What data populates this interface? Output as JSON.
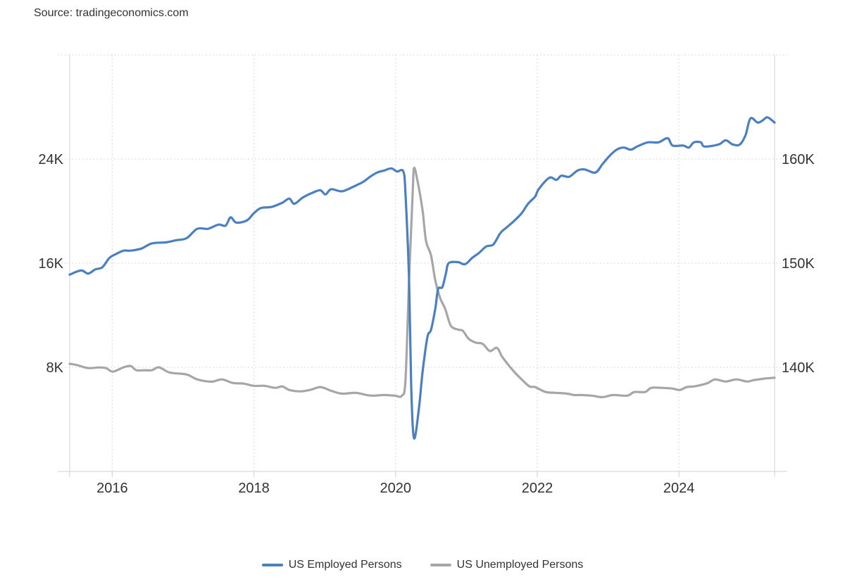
{
  "source": "Source: tradingeconomics.com",
  "chart_data": {
    "type": "line",
    "title": "",
    "xlabel": "",
    "x_range": [
      2015.4,
      2025.35
    ],
    "x_ticks": [
      2016,
      2018,
      2020,
      2022,
      2024
    ],
    "x_tick_labels": [
      "2016",
      "2018",
      "2020",
      "2022",
      "2024"
    ],
    "left_axis": {
      "unit": "thousands",
      "range": [
        0,
        32
      ],
      "ticks": [
        8,
        16,
        24
      ],
      "tick_labels": [
        "8K",
        "16K",
        "24K"
      ]
    },
    "right_axis": {
      "unit": "thousands",
      "range": [
        130,
        170
      ],
      "ticks": [
        140,
        150,
        160
      ],
      "tick_labels": [
        "140K",
        "150K",
        "160K"
      ]
    },
    "grid": true,
    "legend_position": "bottom-center",
    "series": [
      {
        "name": "US Employed Persons",
        "axis": "right",
        "color": "#4a7fc1",
        "points": [
          [
            2015.4,
            148.9
          ],
          [
            2015.56,
            149.3
          ],
          [
            2015.66,
            149.0
          ],
          [
            2015.76,
            149.4
          ],
          [
            2015.86,
            149.6
          ],
          [
            2015.96,
            150.5
          ],
          [
            2016.06,
            150.9
          ],
          [
            2016.16,
            151.2
          ],
          [
            2016.26,
            151.2
          ],
          [
            2016.41,
            151.4
          ],
          [
            2016.56,
            151.9
          ],
          [
            2016.76,
            152.0
          ],
          [
            2016.9,
            152.2
          ],
          [
            2017.05,
            152.4
          ],
          [
            2017.2,
            153.3
          ],
          [
            2017.35,
            153.3
          ],
          [
            2017.5,
            153.7
          ],
          [
            2017.6,
            153.6
          ],
          [
            2017.67,
            154.4
          ],
          [
            2017.75,
            153.9
          ],
          [
            2017.9,
            154.1
          ],
          [
            2018.0,
            154.8
          ],
          [
            2018.1,
            155.3
          ],
          [
            2018.25,
            155.4
          ],
          [
            2018.4,
            155.8
          ],
          [
            2018.5,
            156.2
          ],
          [
            2018.57,
            155.7
          ],
          [
            2018.69,
            156.3
          ],
          [
            2018.84,
            156.8
          ],
          [
            2018.94,
            157.0
          ],
          [
            2019.01,
            156.6
          ],
          [
            2019.09,
            157.1
          ],
          [
            2019.24,
            156.9
          ],
          [
            2019.39,
            157.3
          ],
          [
            2019.54,
            157.8
          ],
          [
            2019.64,
            158.3
          ],
          [
            2019.74,
            158.7
          ],
          [
            2019.84,
            158.9
          ],
          [
            2019.94,
            159.1
          ],
          [
            2020.02,
            158.8
          ],
          [
            2020.11,
            158.8
          ],
          [
            2020.14,
            156.6
          ],
          [
            2020.19,
            148.5
          ],
          [
            2020.22,
            138.3
          ],
          [
            2020.26,
            133.2
          ],
          [
            2020.33,
            136.1
          ],
          [
            2020.38,
            139.5
          ],
          [
            2020.45,
            142.9
          ],
          [
            2020.5,
            143.6
          ],
          [
            2020.56,
            145.6
          ],
          [
            2020.6,
            147.5
          ],
          [
            2020.66,
            147.7
          ],
          [
            2020.71,
            149.0
          ],
          [
            2020.75,
            150.0
          ],
          [
            2020.88,
            150.1
          ],
          [
            2020.98,
            149.9
          ],
          [
            2021.08,
            150.5
          ],
          [
            2021.18,
            151.0
          ],
          [
            2021.28,
            151.6
          ],
          [
            2021.38,
            151.8
          ],
          [
            2021.48,
            152.9
          ],
          [
            2021.58,
            153.5
          ],
          [
            2021.68,
            154.1
          ],
          [
            2021.78,
            154.8
          ],
          [
            2021.87,
            155.7
          ],
          [
            2021.97,
            156.4
          ],
          [
            2022.02,
            157.1
          ],
          [
            2022.17,
            158.2
          ],
          [
            2022.27,
            158.0
          ],
          [
            2022.34,
            158.4
          ],
          [
            2022.45,
            158.3
          ],
          [
            2022.57,
            158.9
          ],
          [
            2022.67,
            159.0
          ],
          [
            2022.82,
            158.7
          ],
          [
            2022.92,
            159.5
          ],
          [
            2023.02,
            160.3
          ],
          [
            2023.12,
            160.9
          ],
          [
            2023.22,
            161.1
          ],
          [
            2023.32,
            160.9
          ],
          [
            2023.41,
            161.2
          ],
          [
            2023.56,
            161.6
          ],
          [
            2023.71,
            161.6
          ],
          [
            2023.84,
            162.0
          ],
          [
            2023.91,
            161.3
          ],
          [
            2024.06,
            161.3
          ],
          [
            2024.14,
            161.1
          ],
          [
            2024.21,
            161.6
          ],
          [
            2024.31,
            161.6
          ],
          [
            2024.36,
            161.2
          ],
          [
            2024.56,
            161.4
          ],
          [
            2024.66,
            161.8
          ],
          [
            2024.76,
            161.4
          ],
          [
            2024.86,
            161.4
          ],
          [
            2024.94,
            162.3
          ],
          [
            2025.01,
            163.9
          ],
          [
            2025.11,
            163.5
          ],
          [
            2025.18,
            163.7
          ],
          [
            2025.25,
            164.0
          ],
          [
            2025.35,
            163.5
          ]
        ]
      },
      {
        "name": "US Unemployed Persons",
        "axis": "left",
        "color": "#a6a6a6",
        "points": [
          [
            2015.4,
            8.27
          ],
          [
            2015.51,
            8.16
          ],
          [
            2015.66,
            7.94
          ],
          [
            2015.81,
            7.99
          ],
          [
            2015.91,
            7.94
          ],
          [
            2016.01,
            7.67
          ],
          [
            2016.16,
            8.0
          ],
          [
            2016.26,
            8.1
          ],
          [
            2016.34,
            7.78
          ],
          [
            2016.46,
            7.78
          ],
          [
            2016.56,
            7.78
          ],
          [
            2016.66,
            8.0
          ],
          [
            2016.81,
            7.6
          ],
          [
            2017.05,
            7.45
          ],
          [
            2017.2,
            7.07
          ],
          [
            2017.4,
            6.9
          ],
          [
            2017.55,
            7.07
          ],
          [
            2017.7,
            6.8
          ],
          [
            2017.85,
            6.75
          ],
          [
            2018.0,
            6.58
          ],
          [
            2018.15,
            6.58
          ],
          [
            2018.3,
            6.42
          ],
          [
            2018.4,
            6.53
          ],
          [
            2018.5,
            6.26
          ],
          [
            2018.65,
            6.15
          ],
          [
            2018.79,
            6.26
          ],
          [
            2018.94,
            6.48
          ],
          [
            2019.09,
            6.2
          ],
          [
            2019.24,
            5.98
          ],
          [
            2019.44,
            6.04
          ],
          [
            2019.59,
            5.87
          ],
          [
            2019.69,
            5.82
          ],
          [
            2019.84,
            5.87
          ],
          [
            2019.99,
            5.82
          ],
          [
            2020.09,
            5.82
          ],
          [
            2020.14,
            7.07
          ],
          [
            2020.19,
            14.7
          ],
          [
            2020.24,
            21.2
          ],
          [
            2020.26,
            23.3
          ],
          [
            2020.31,
            22.3
          ],
          [
            2020.38,
            20.1
          ],
          [
            2020.43,
            17.7
          ],
          [
            2020.5,
            16.6
          ],
          [
            2020.56,
            14.7
          ],
          [
            2020.63,
            13.3
          ],
          [
            2020.7,
            12.5
          ],
          [
            2020.78,
            11.2
          ],
          [
            2020.88,
            10.9
          ],
          [
            2020.95,
            10.8
          ],
          [
            2021.03,
            10.2
          ],
          [
            2021.13,
            9.9
          ],
          [
            2021.23,
            9.8
          ],
          [
            2021.33,
            9.25
          ],
          [
            2021.43,
            9.5
          ],
          [
            2021.5,
            8.85
          ],
          [
            2021.58,
            8.27
          ],
          [
            2021.68,
            7.62
          ],
          [
            2021.78,
            7.07
          ],
          [
            2021.89,
            6.53
          ],
          [
            2021.97,
            6.48
          ],
          [
            2022.12,
            6.1
          ],
          [
            2022.27,
            6.04
          ],
          [
            2022.42,
            5.98
          ],
          [
            2022.52,
            5.87
          ],
          [
            2022.62,
            5.87
          ],
          [
            2022.77,
            5.82
          ],
          [
            2022.92,
            5.71
          ],
          [
            2023.07,
            5.87
          ],
          [
            2023.27,
            5.82
          ],
          [
            2023.37,
            6.1
          ],
          [
            2023.52,
            6.1
          ],
          [
            2023.61,
            6.42
          ],
          [
            2023.76,
            6.42
          ],
          [
            2023.91,
            6.37
          ],
          [
            2024.01,
            6.26
          ],
          [
            2024.11,
            6.48
          ],
          [
            2024.21,
            6.53
          ],
          [
            2024.31,
            6.64
          ],
          [
            2024.41,
            6.8
          ],
          [
            2024.51,
            7.07
          ],
          [
            2024.66,
            6.91
          ],
          [
            2024.81,
            7.07
          ],
          [
            2024.96,
            6.91
          ],
          [
            2025.06,
            7.02
          ],
          [
            2025.2,
            7.13
          ],
          [
            2025.35,
            7.2
          ]
        ]
      }
    ]
  }
}
